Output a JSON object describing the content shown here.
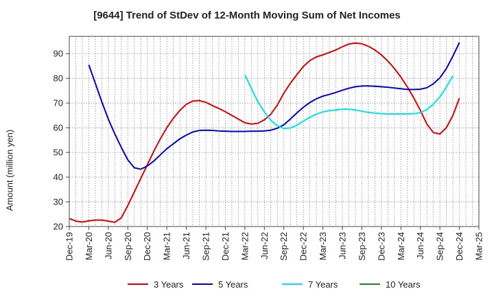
{
  "chart_data": {
    "type": "line",
    "title": "[9644]  Trend of StDev of 12-Month Moving Sum of Net Incomes",
    "xlabel": "",
    "ylabel": "Amount (million yen)",
    "ylim": [
      20,
      97
    ],
    "yticks": [
      20,
      30,
      40,
      50,
      60,
      70,
      80,
      90
    ],
    "xticks": [
      "Dec-19",
      "Mar-20",
      "Jun-20",
      "Sep-20",
      "Dec-20",
      "Mar-21",
      "Jun-21",
      "Sep-21",
      "Dec-21",
      "Mar-22",
      "Jun-22",
      "Sep-22",
      "Dec-22",
      "Mar-23",
      "Jun-23",
      "Sep-23",
      "Dec-23",
      "Mar-24",
      "Jun-24",
      "Sep-24",
      "Dec-24",
      "Mar-25"
    ],
    "grid": true,
    "legend_position": "bottom",
    "series": [
      {
        "name": "3 Years",
        "color": "#dd0000",
        "start": "Dec-19",
        "values": [
          23.2,
          22.2,
          21.8,
          22.3,
          22.6,
          22.6,
          22.2,
          21.7,
          23.5,
          28.5,
          34,
          39.5,
          45,
          50.5,
          55.5,
          60,
          63.8,
          67,
          69.5,
          70.8,
          71,
          70.3,
          69,
          67.8,
          66.5,
          65,
          63.5,
          62,
          61.5,
          61.8,
          63.2,
          65.5,
          69.2,
          74,
          78,
          81.5,
          84.8,
          87.2,
          88.7,
          89.5,
          90.5,
          91.5,
          92.8,
          93.9,
          94.3,
          94,
          93,
          91.5,
          89.5,
          87,
          84,
          80.5,
          76.5,
          72,
          67,
          61.5,
          58,
          57.5,
          60,
          65,
          72
        ]
      },
      {
        "name": "5 Years",
        "color": "#0000cc",
        "start": "Mar-20",
        "values": [
          85.5,
          78,
          70.5,
          63.5,
          57.5,
          52,
          47,
          43.8,
          43.2,
          44.5,
          46.5,
          49,
          51.5,
          53.5,
          55.5,
          57,
          58.3,
          58.9,
          59,
          58.9,
          58.7,
          58.6,
          58.5,
          58.5,
          58.5,
          58.6,
          58.6,
          58.7,
          59,
          59.8,
          61.2,
          63.5,
          66,
          68.3,
          70.2,
          71.7,
          72.8,
          73.5,
          74.3,
          75.2,
          76,
          76.6,
          76.9,
          76.9,
          76.8,
          76.6,
          76.4,
          76.1,
          75.8,
          75.5,
          75.5,
          75.6,
          76.2,
          77.8,
          80.2,
          84,
          89,
          94.5
        ]
      },
      {
        "name": "7 Years",
        "color": "#00e5e5",
        "start": "Mar-22",
        "values": [
          81.5,
          76,
          70.5,
          66.5,
          63,
          60.8,
          59.7,
          59.9,
          61,
          62.7,
          64.2,
          65.5,
          66.4,
          66.9,
          67.2,
          67.5,
          67.5,
          67.2,
          66.7,
          66.2,
          65.9,
          65.7,
          65.6,
          65.6,
          65.6,
          65.6,
          65.7,
          66.1,
          67.4,
          69.5,
          72.5,
          76.5,
          81
        ]
      },
      {
        "name": "10 Years",
        "color": "#1a8a1a",
        "start": "",
        "values": []
      }
    ]
  }
}
